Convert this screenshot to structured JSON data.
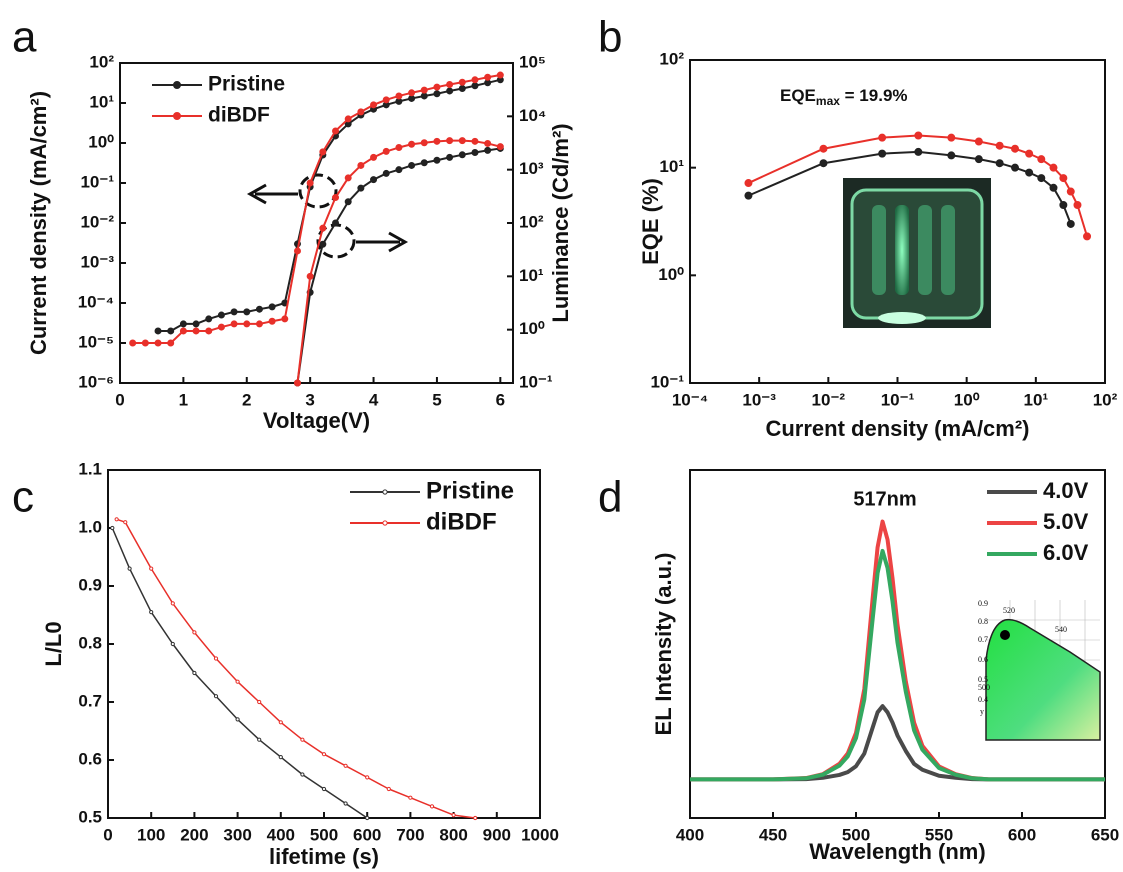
{
  "chart_data": [
    {
      "type": "line",
      "label": "a",
      "xlabel": "Voltage(V)",
      "ylabel": "Current density (mA/cm²)",
      "y2label": "Luminance (Cd/m²)",
      "ylog": true,
      "y2log": true,
      "legend": "upper left",
      "xlim": [
        0,
        6.2
      ],
      "xticks": [
        0,
        1,
        2,
        3,
        4,
        5,
        6
      ],
      "ylim": [
        1e-06,
        100
      ],
      "yticks": [
        {
          "value": 1e-06,
          "label": "10⁻⁶"
        },
        {
          "value": 1e-05,
          "label": "10⁻⁵"
        },
        {
          "value": 0.0001,
          "label": "10⁻⁴"
        },
        {
          "value": 0.001,
          "label": "10⁻³"
        },
        {
          "value": 0.01,
          "label": "10⁻²"
        },
        {
          "value": 0.1,
          "label": "10⁻¹"
        },
        {
          "value": 1,
          "label": "10⁰"
        },
        {
          "value": 10,
          "label": "10¹"
        },
        {
          "value": 100,
          "label": "10²"
        }
      ],
      "y2lim": [
        0.1,
        100000
      ],
      "y2ticks": [
        {
          "value": 0.1,
          "label": "10⁻¹"
        },
        {
          "value": 1,
          "label": "10⁰"
        },
        {
          "value": 10,
          "label": "10¹"
        },
        {
          "value": 100,
          "label": "10²"
        },
        {
          "value": 1000,
          "label": "10³"
        },
        {
          "value": 10000,
          "label": "10⁴"
        },
        {
          "value": 100000,
          "label": "10⁵"
        }
      ],
      "x": [
        0.2,
        0.4,
        0.6,
        0.8,
        1,
        1.2,
        1.4,
        1.6,
        1.8,
        2,
        2.2,
        2.4,
        2.6,
        2.8,
        3,
        3.2,
        3.4,
        3.6,
        3.8,
        4,
        4.2,
        4.4,
        4.6,
        4.8,
        5,
        5.2,
        5.4,
        5.6,
        5.8,
        6
      ],
      "series": [
        {
          "name": "Pristine",
          "color": "#222222",
          "values": [
            null,
            null,
            2e-05,
            2e-05,
            3e-05,
            3e-05,
            4e-05,
            5e-05,
            6e-05,
            6e-05,
            7e-05,
            8e-05,
            0.0001,
            0.003,
            0.08,
            0.5,
            1.5,
            3,
            5,
            7,
            9,
            11,
            13,
            15,
            17,
            20,
            23,
            27,
            32,
            38
          ],
          "y2_values": [
            null,
            null,
            null,
            null,
            null,
            null,
            null,
            null,
            null,
            null,
            null,
            null,
            null,
            0.1,
            5,
            40,
            100,
            250,
            450,
            650,
            850,
            1000,
            1200,
            1350,
            1500,
            1700,
            1900,
            2100,
            2300,
            2500
          ]
        },
        {
          "name": "diBDF",
          "color": "#e8302a",
          "values": [
            1e-05,
            1e-05,
            1e-05,
            1e-05,
            2e-05,
            2e-05,
            2e-05,
            2.5e-05,
            3e-05,
            3e-05,
            3e-05,
            3.5e-05,
            4e-05,
            0.002,
            0.1,
            0.6,
            2,
            4,
            6,
            9,
            12,
            15,
            18,
            21,
            25,
            29,
            33,
            38,
            44,
            50
          ],
          "y2_values": [
            null,
            null,
            null,
            null,
            null,
            null,
            null,
            null,
            null,
            null,
            null,
            null,
            null,
            0.1,
            10,
            80,
            300,
            700,
            1200,
            1700,
            2200,
            2600,
            3000,
            3200,
            3400,
            3500,
            3500,
            3400,
            3100,
            2700
          ]
        }
      ]
    },
    {
      "type": "line",
      "label": "b",
      "xlabel": "Current density (mA/cm²)",
      "ylabel": "EQE (%)",
      "annotation": [
        "EQE",
        "max",
        " = 19.9%"
      ],
      "xlog": true,
      "ylog": true,
      "xlim": [
        0.0001,
        100
      ],
      "xticks": [
        {
          "value": 0.0001,
          "label": "10⁻⁴"
        },
        {
          "value": 0.001,
          "label": "10⁻³"
        },
        {
          "value": 0.01,
          "label": "10⁻²"
        },
        {
          "value": 0.1,
          "label": "10⁻¹"
        },
        {
          "value": 1,
          "label": "10⁰"
        },
        {
          "value": 10,
          "label": "10¹"
        },
        {
          "value": 100,
          "label": "10²"
        }
      ],
      "ylim": [
        0.1,
        100
      ],
      "yticks": [
        {
          "value": 0.1,
          "label": "10⁻¹"
        },
        {
          "value": 1,
          "label": "10⁰"
        },
        {
          "value": 10,
          "label": "10¹"
        },
        {
          "value": 100,
          "label": "10²"
        }
      ],
      "x": [
        0.0007,
        0.0085,
        0.06,
        0.2,
        0.6,
        1.5,
        3,
        5,
        8,
        12,
        18,
        25,
        32,
        40,
        55
      ],
      "series": [
        {
          "color": "#222222",
          "values": [
            5.5,
            11,
            13.5,
            14,
            13,
            12,
            11,
            10,
            9,
            8,
            6.5,
            4.5,
            3,
            null,
            null
          ]
        },
        {
          "color": "#e8302a",
          "values": [
            7.2,
            15,
            19,
            19.9,
            19,
            17.5,
            16,
            15,
            13.5,
            12,
            10,
            8,
            6,
            4.5,
            2.3
          ]
        }
      ]
    },
    {
      "type": "line",
      "label": "c",
      "xlabel": "lifetime (s)",
      "ylabel": "L/L0",
      "legend": "upper right",
      "xlim": [
        0,
        1000
      ],
      "xticks": [
        0,
        100,
        200,
        300,
        400,
        500,
        600,
        700,
        800,
        900,
        1000
      ],
      "ylim": [
        0.5,
        1.1
      ],
      "yticks": [
        0.5,
        0.6,
        0.7,
        0.8,
        0.9,
        {
          "value": 1,
          "label": "1.0"
        },
        1.1
      ],
      "series": [
        {
          "name": "Pristine",
          "color": "#333333",
          "x": [
            10,
            50,
            100,
            150,
            200,
            250,
            300,
            350,
            400,
            450,
            500,
            550,
            600
          ],
          "values": [
            1.0,
            0.93,
            0.855,
            0.8,
            0.75,
            0.71,
            0.67,
            0.635,
            0.605,
            0.575,
            0.55,
            0.525,
            0.5
          ]
        },
        {
          "name": "diBDF",
          "color": "#e8302a",
          "x": [
            20,
            40,
            100,
            150,
            200,
            250,
            300,
            350,
            400,
            450,
            500,
            550,
            600,
            650,
            700,
            750,
            800,
            850
          ],
          "values": [
            1.015,
            1.01,
            0.93,
            0.87,
            0.82,
            0.775,
            0.735,
            0.7,
            0.665,
            0.635,
            0.61,
            0.59,
            0.57,
            0.55,
            0.535,
            0.52,
            0.505,
            0.5
          ]
        }
      ]
    },
    {
      "type": "line",
      "label": "d",
      "xlabel": "Wavelength (nm)",
      "ylabel": "EL Intensity (a.u.)",
      "legend": "upper right",
      "annotation": "517nm",
      "inset_labels": [
        "0.9",
        "0.8",
        "0.7",
        "0.6",
        "0.5",
        "0.4",
        "520",
        "540",
        "500",
        "y"
      ],
      "xlim": [
        400,
        650
      ],
      "xticks": [
        400,
        450,
        500,
        550,
        600,
        650
      ],
      "ylim": [
        -0.15,
        1.2
      ],
      "x": [
        400,
        450,
        470,
        480,
        490,
        495,
        500,
        505,
        510,
        513,
        516,
        519,
        522,
        525,
        530,
        535,
        540,
        550,
        560,
        570,
        580,
        600,
        650
      ],
      "series": [
        {
          "name": "4.0V",
          "color": "#4a4a4a",
          "values": [
            0,
            0,
            0.001,
            0.006,
            0.017,
            0.028,
            0.051,
            0.1,
            0.2,
            0.26,
            0.284,
            0.26,
            0.22,
            0.17,
            0.11,
            0.06,
            0.037,
            0.014,
            0.006,
            0.001,
            0,
            0,
            0
          ]
        },
        {
          "name": "5.0V",
          "color": "#ec4444",
          "values": [
            0,
            0,
            0.005,
            0.02,
            0.06,
            0.1,
            0.18,
            0.35,
            0.7,
            0.9,
            1,
            0.93,
            0.78,
            0.6,
            0.38,
            0.22,
            0.13,
            0.05,
            0.02,
            0.005,
            0,
            0,
            0
          ]
        },
        {
          "name": "6.0V",
          "color": "#34a860",
          "values": [
            0,
            0,
            0.004,
            0.018,
            0.053,
            0.089,
            0.16,
            0.31,
            0.62,
            0.8,
            0.886,
            0.82,
            0.69,
            0.53,
            0.34,
            0.19,
            0.115,
            0.044,
            0.018,
            0.004,
            0,
            0,
            0
          ]
        }
      ]
    }
  ]
}
